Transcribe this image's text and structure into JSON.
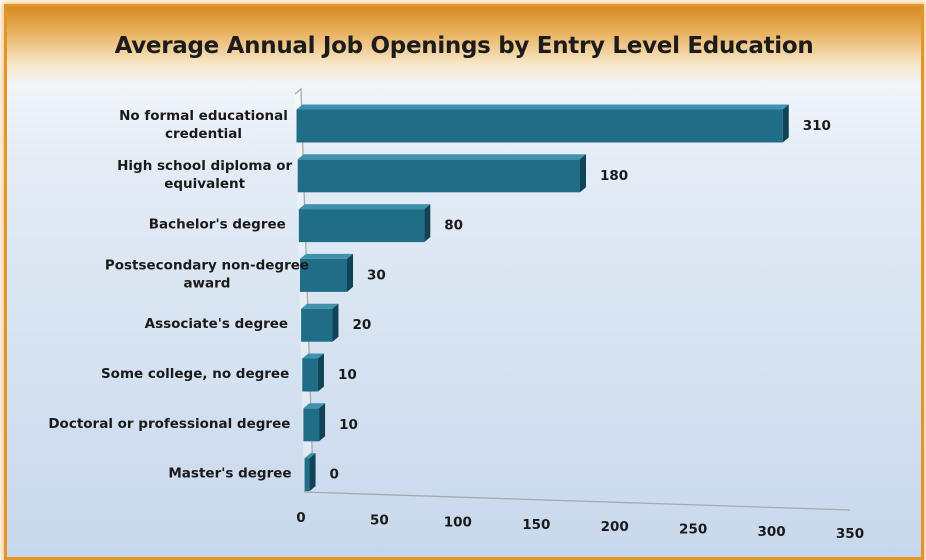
{
  "chart_data": {
    "type": "bar",
    "orientation": "horizontal",
    "title": "Average Annual Job Openings by Entry Level Education",
    "xlabel": "",
    "ylabel": "",
    "categories": [
      "No formal educational credential",
      "High school diploma or equivalent",
      "Bachelor's degree",
      "Postsecondary non-degree award",
      "Associate's degree",
      "Some college, no degree",
      "Doctoral or professional degree",
      "Master's degree"
    ],
    "category_lines": [
      [
        "No formal educational",
        "credential"
      ],
      [
        "High school diploma or",
        "equivalent"
      ],
      [
        "Bachelor's degree"
      ],
      [
        "Postsecondary non-degree",
        "award"
      ],
      [
        "Associate's degree"
      ],
      [
        "Some college, no degree"
      ],
      [
        "Doctoral or professional degree"
      ],
      [
        "Master's degree"
      ]
    ],
    "values": [
      310,
      180,
      80,
      30,
      20,
      10,
      10,
      0
    ],
    "value_labels": [
      "310",
      "180",
      "80",
      "30",
      "20",
      "10",
      "10",
      "0"
    ],
    "xlim": [
      0,
      350
    ],
    "xticks": [
      0,
      50,
      100,
      150,
      200,
      250,
      300,
      350
    ],
    "grid": false,
    "legend": "none",
    "style": "3d",
    "colors": {
      "bar_front": "#1f6d86",
      "bar_top": "#3f93ad",
      "bar_side": "#0f4355",
      "axis": "#a9a9a9",
      "border": "#e2962a"
    }
  }
}
